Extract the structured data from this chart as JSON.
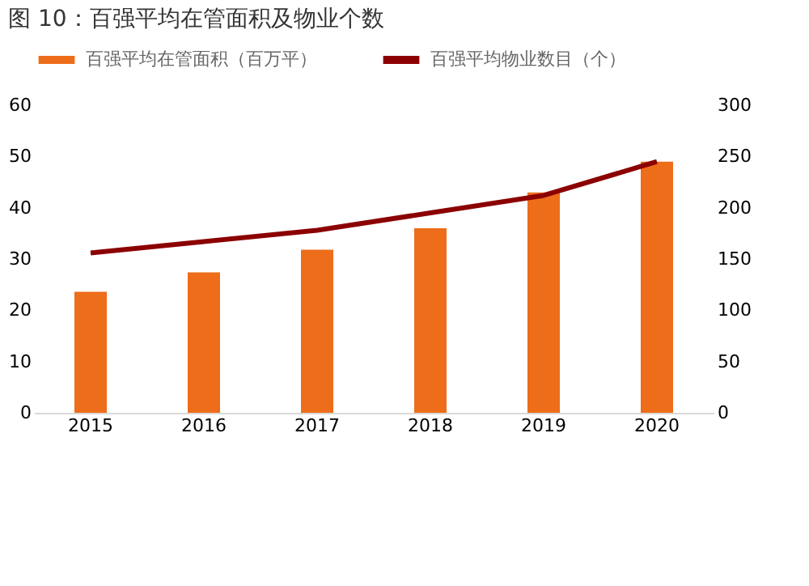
{
  "chart_data": {
    "type": "bar",
    "title": "图 10：百强平均在管面积及物业个数",
    "categories": [
      "2015",
      "2016",
      "2017",
      "2018",
      "2019",
      "2020"
    ],
    "series": [
      {
        "name": "百强平均在管面积（百万平）",
        "color": "#ed6d1a",
        "values": [
          23.6,
          27.4,
          31.8,
          36,
          43,
          49
        ]
      },
      {
        "name": "百强平均物业数目（个）",
        "type": "line",
        "axis": "y2",
        "color": "#8b0000",
        "values": [
          156,
          167,
          178,
          195,
          212,
          245
        ]
      }
    ],
    "ylim": [
      0,
      60
    ],
    "yticks": [
      0,
      10,
      20,
      30,
      40,
      50,
      60
    ],
    "y2lim": [
      0,
      300
    ],
    "y2ticks": [
      0,
      50,
      100,
      150,
      200,
      250,
      300
    ],
    "grid": false,
    "legend": "top",
    "marker": "none"
  }
}
